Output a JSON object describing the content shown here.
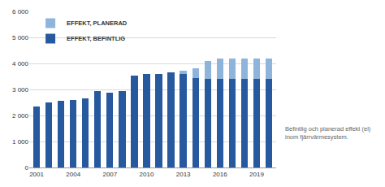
{
  "chart_data": {
    "type": "bar",
    "stacked": true,
    "categories": [
      "2001",
      null,
      null,
      "2004",
      null,
      null,
      "2007",
      null,
      null,
      "2010",
      null,
      null,
      "2013",
      null,
      null,
      "2016",
      null,
      null,
      "2019",
      null
    ],
    "series": [
      {
        "name": "EFFEKT, BEFINTLIG",
        "color": "#27599f",
        "values": [
          2350,
          2500,
          2550,
          2600,
          2650,
          2950,
          2880,
          2950,
          3530,
          3600,
          3600,
          3650,
          3600,
          3450,
          3400,
          3400,
          3400,
          3400,
          3400,
          3400
        ]
      },
      {
        "name": "EFFEKT, PLANERAD",
        "color": "#8fb4dc",
        "values": [
          0,
          0,
          0,
          0,
          0,
          0,
          0,
          0,
          0,
          0,
          0,
          0,
          120,
          350,
          700,
          800,
          800,
          800,
          800,
          800
        ]
      }
    ],
    "ylim": [
      0,
      6000
    ],
    "yticks": [
      0,
      {
        "value": 1000,
        "label": "1 000"
      },
      {
        "value": 2000,
        "label": "2 000"
      },
      {
        "value": 3000,
        "label": "3 000"
      },
      {
        "value": 4000,
        "label": "4 000"
      },
      {
        "value": 5000,
        "label": "5 000"
      },
      {
        "value": 6000,
        "label": "6 000"
      }
    ],
    "grid": true,
    "legend": "top-left",
    "annotations": [
      "Befintlig och planerad effekt (el)\ninom fjärrvärmesystem."
    ]
  }
}
